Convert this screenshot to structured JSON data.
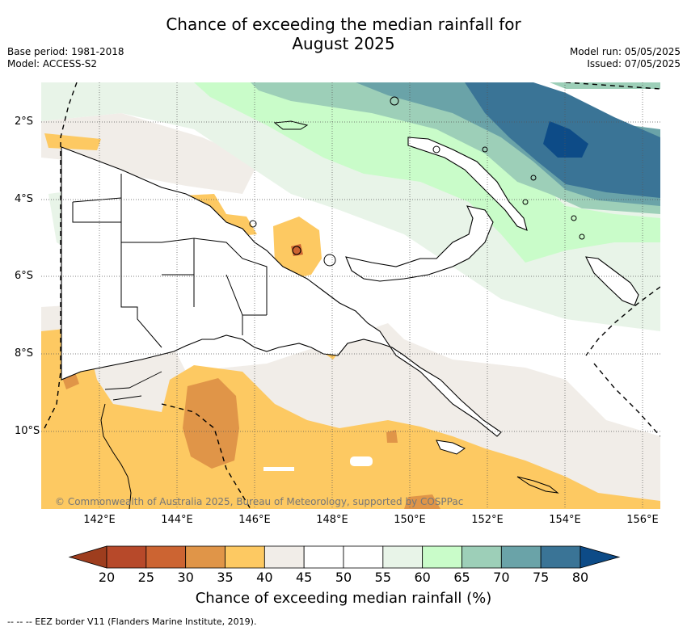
{
  "title_line1": "Chance of exceeding the median rainfall for",
  "title_line2": "August 2025",
  "meta": {
    "base_period": "Base period: 1981-2018",
    "model": "Model: ACCESS-S2",
    "model_run": "Model run: 05/05/2025",
    "issued": "Issued: 07/05/2025"
  },
  "x_ticks": [
    "142°E",
    "144°E",
    "146°E",
    "148°E",
    "150°E",
    "152°E",
    "154°E",
    "156°E"
  ],
  "y_ticks": [
    "2°S",
    "4°S",
    "6°S",
    "8°S",
    "10°S"
  ],
  "copyright": "© Commonwealth of Australia 2025, Bureau of Meteorology, supported by COSPPac",
  "colorbar": {
    "ticks": [
      "20",
      "25",
      "30",
      "35",
      "40",
      "45",
      "50",
      "55",
      "60",
      "65",
      "70",
      "75",
      "80"
    ],
    "colors": [
      "#9e3d1e",
      "#b7492a",
      "#cc6432",
      "#e09548",
      "#fdc962",
      "#f1ede8",
      "#ffffff",
      "#ffffff",
      "#e8f4e8",
      "#c9fcc9",
      "#9dcfb8",
      "#6aa3a8",
      "#3a7496",
      "#0d4b87"
    ],
    "label": "Chance of exceeding median rainfall (%)"
  },
  "footnote": "--  --  -- EEZ border V11 (Flanders Marine Institute, 2019)."
}
